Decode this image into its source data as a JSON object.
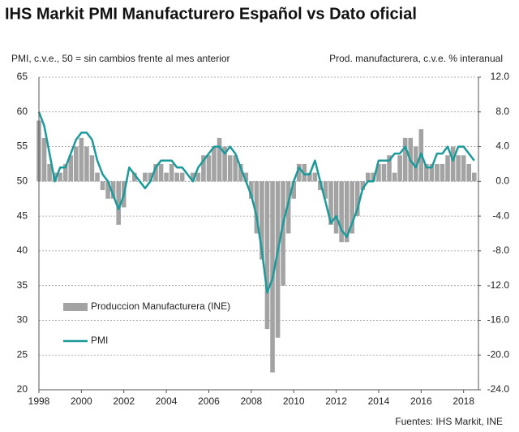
{
  "chart_data": {
    "type": "bar-line",
    "title": "IHS Markit PMI Manufacturero Español vs Dato oficial",
    "y_label": "PMI, c.v.e., 50 = sin cambios frente al mes anterior",
    "y2_label": "Prod. manufacturera, c.v.e. % interanual",
    "source": "Fuentes: IHS Markit, INE",
    "legend": "lower left",
    "grid": true,
    "x": [
      1998,
      1998.25,
      1998.5,
      1998.75,
      1999,
      1999.25,
      1999.5,
      1999.75,
      2000,
      2000.25,
      2000.5,
      2000.75,
      2001,
      2001.25,
      2001.5,
      2001.75,
      2002,
      2002.25,
      2002.5,
      2002.75,
      2003,
      2003.25,
      2003.5,
      2003.75,
      2004,
      2004.25,
      2004.5,
      2004.75,
      2005,
      2005.25,
      2005.5,
      2005.75,
      2006,
      2006.25,
      2006.5,
      2006.75,
      2007,
      2007.25,
      2007.5,
      2007.75,
      2008,
      2008.25,
      2008.5,
      2008.75,
      2009,
      2009.25,
      2009.5,
      2009.75,
      2010,
      2010.25,
      2010.5,
      2010.75,
      2011,
      2011.25,
      2011.5,
      2011.75,
      2012,
      2012.25,
      2012.5,
      2012.75,
      2013,
      2013.25,
      2013.5,
      2013.75,
      2014,
      2014.25,
      2014.5,
      2014.75,
      2015,
      2015.25,
      2015.5,
      2015.75,
      2016,
      2016.25,
      2016.5,
      2016.75,
      2017,
      2017.25,
      2017.5,
      2017.75,
      2018,
      2018.25,
      2018.5
    ],
    "series": [
      {
        "name": "Produccion Manufacturera (INE)",
        "type": "bar",
        "axis": "y2",
        "color": "#a3a3a3",
        "values": [
          7,
          5,
          2,
          1,
          1,
          2,
          3,
          4,
          5,
          4,
          3,
          1,
          -1,
          -2,
          -2,
          -5,
          -3,
          0,
          1,
          0,
          1,
          1,
          2,
          2,
          1,
          2,
          1,
          1,
          0,
          1,
          1,
          3,
          3,
          4,
          5,
          4,
          3,
          3,
          2,
          1,
          -2,
          -6,
          -9,
          -17,
          -22,
          -18,
          -12,
          -6,
          -2,
          2,
          2,
          1,
          1,
          -1,
          -2,
          -5,
          -6,
          -7,
          -7,
          -6,
          -4,
          -1,
          1,
          1,
          2,
          2,
          3,
          1,
          3,
          5,
          5,
          4,
          6,
          2,
          2,
          2,
          2,
          3,
          4,
          3,
          3,
          2,
          1
        ]
      },
      {
        "name": "PMI",
        "type": "line",
        "axis": "y",
        "color": "#1c9a9a",
        "values": [
          60,
          58,
          54,
          50,
          52,
          52,
          54,
          56,
          57,
          57,
          56,
          53,
          51,
          50,
          48,
          46,
          48,
          52,
          51,
          50,
          49,
          50,
          52,
          53,
          53,
          53,
          52,
          52,
          51,
          50,
          52,
          53,
          54,
          55,
          55,
          54,
          55,
          54,
          52,
          50,
          48,
          45,
          40,
          34,
          36,
          40,
          44,
          47,
          50,
          52,
          51,
          51,
          53,
          50,
          47,
          44,
          45,
          43,
          42,
          44,
          46,
          49,
          50,
          50,
          53,
          53,
          53,
          54,
          54,
          55,
          53,
          52,
          54,
          52,
          52,
          54,
          54,
          55,
          53,
          55,
          55,
          54,
          53
        ]
      }
    ],
    "xlim": [
      1998,
      2018.7
    ],
    "xticks": [
      1998,
      2000,
      2002,
      2004,
      2006,
      2008,
      2010,
      2012,
      2014,
      2016,
      2018
    ],
    "ylim": [
      20,
      65
    ],
    "yticks": [
      20,
      25,
      30,
      35,
      40,
      45,
      50,
      55,
      60,
      65
    ],
    "y2lim": [
      -24,
      12
    ],
    "y2ticks": [
      {
        "value": -24,
        "label": "-24.0"
      },
      {
        "value": -20,
        "label": "-20.0"
      },
      {
        "value": -16,
        "label": "-16.0"
      },
      {
        "value": -12,
        "label": "-12.0"
      },
      {
        "value": -8,
        "label": "-8.0"
      },
      {
        "value": -4,
        "label": "-4.0"
      },
      {
        "value": 0,
        "label": "0.0"
      },
      {
        "value": 4,
        "label": "4.0"
      },
      {
        "value": 8,
        "label": "8.0"
      },
      {
        "value": 12,
        "label": "12.0"
      }
    ]
  }
}
